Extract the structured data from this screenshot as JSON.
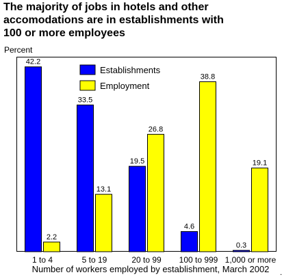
{
  "chart_data": {
    "type": "bar",
    "title_lines": [
      "The majority of jobs in hotels and other",
      "accomodations are in establishments with",
      "100 or more employees"
    ],
    "ylabel": "Percent",
    "xlabel": "Number of workers employed by establishment, March 2002",
    "categories": [
      "1 to 4",
      "5 to 19",
      "20 to 99",
      "100 to 999",
      "1,000 or more"
    ],
    "series": [
      {
        "name": "Establishments",
        "color": "#0000ff",
        "values": [
          42.2,
          33.5,
          19.5,
          4.6,
          0.3
        ]
      },
      {
        "name": "Employment",
        "color": "#ffff00",
        "values": [
          2.2,
          13.1,
          26.8,
          38.8,
          19.1
        ]
      }
    ],
    "ylim": [
      0,
      44.5
    ],
    "grid": false,
    "legend_position": "top-center"
  },
  "footer_note": "."
}
